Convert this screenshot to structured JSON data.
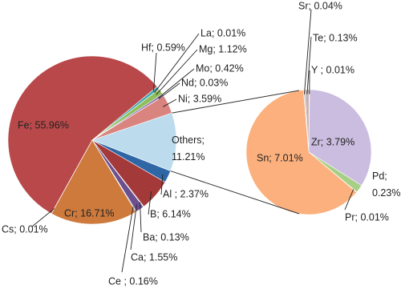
{
  "chart_data": [
    {
      "type": "pie",
      "values": [
        55.96,
        0.59,
        0.01,
        1.12,
        0.42,
        0.03,
        3.59,
        11.21,
        2.37,
        6.14,
        0.13,
        1.55,
        0.16,
        16.71,
        0.01
      ],
      "value_labels": [
        "Fe; 55.96%",
        "Hf; 0.59%",
        "La; 0.01%",
        "Mg; 1.12%",
        "Mo; 0.42%",
        "Nd; 0.03%",
        "Ni; 3.59%",
        "Others; 11.21%",
        "Al ; 2.37%",
        "B; 6.14%",
        "Ba; 0.13%",
        "Ca; 1.55%",
        "Ce ; 0.16%",
        "Cr; 16.71%",
        "Cs; 0.01%"
      ],
      "colors": [
        "#b9484a",
        "#3fa6b0",
        "#5a7fc0",
        "#8fbf5a",
        "#8a6aaa",
        "#4aa8c0",
        "#da8480",
        "#bcdcee",
        "#2f67a6",
        "#a33a39",
        "#7f6aa6",
        "#6b4f8f",
        "#3d4f7c",
        "#cd7a3c",
        "#7f9cc8"
      ]
    },
    {
      "type": "pie",
      "values": [
        0.04,
        0.13,
        0.01,
        3.79,
        0.23,
        0.01,
        7.01
      ],
      "value_labels": [
        "Sr; 0.04%",
        "Te; 0.13%",
        "Y ; 0.01%",
        "Zr; 3.79%",
        "Pd; 0.23%",
        "Pr; 0.01%",
        "Sn; 7.01%"
      ],
      "colors": [
        "#bfbfbf",
        "#c8b4b4",
        "#c6c6a8",
        "#cbbde0",
        "#a7cf86",
        "#98b8d8",
        "#fbb07d"
      ]
    }
  ]
}
